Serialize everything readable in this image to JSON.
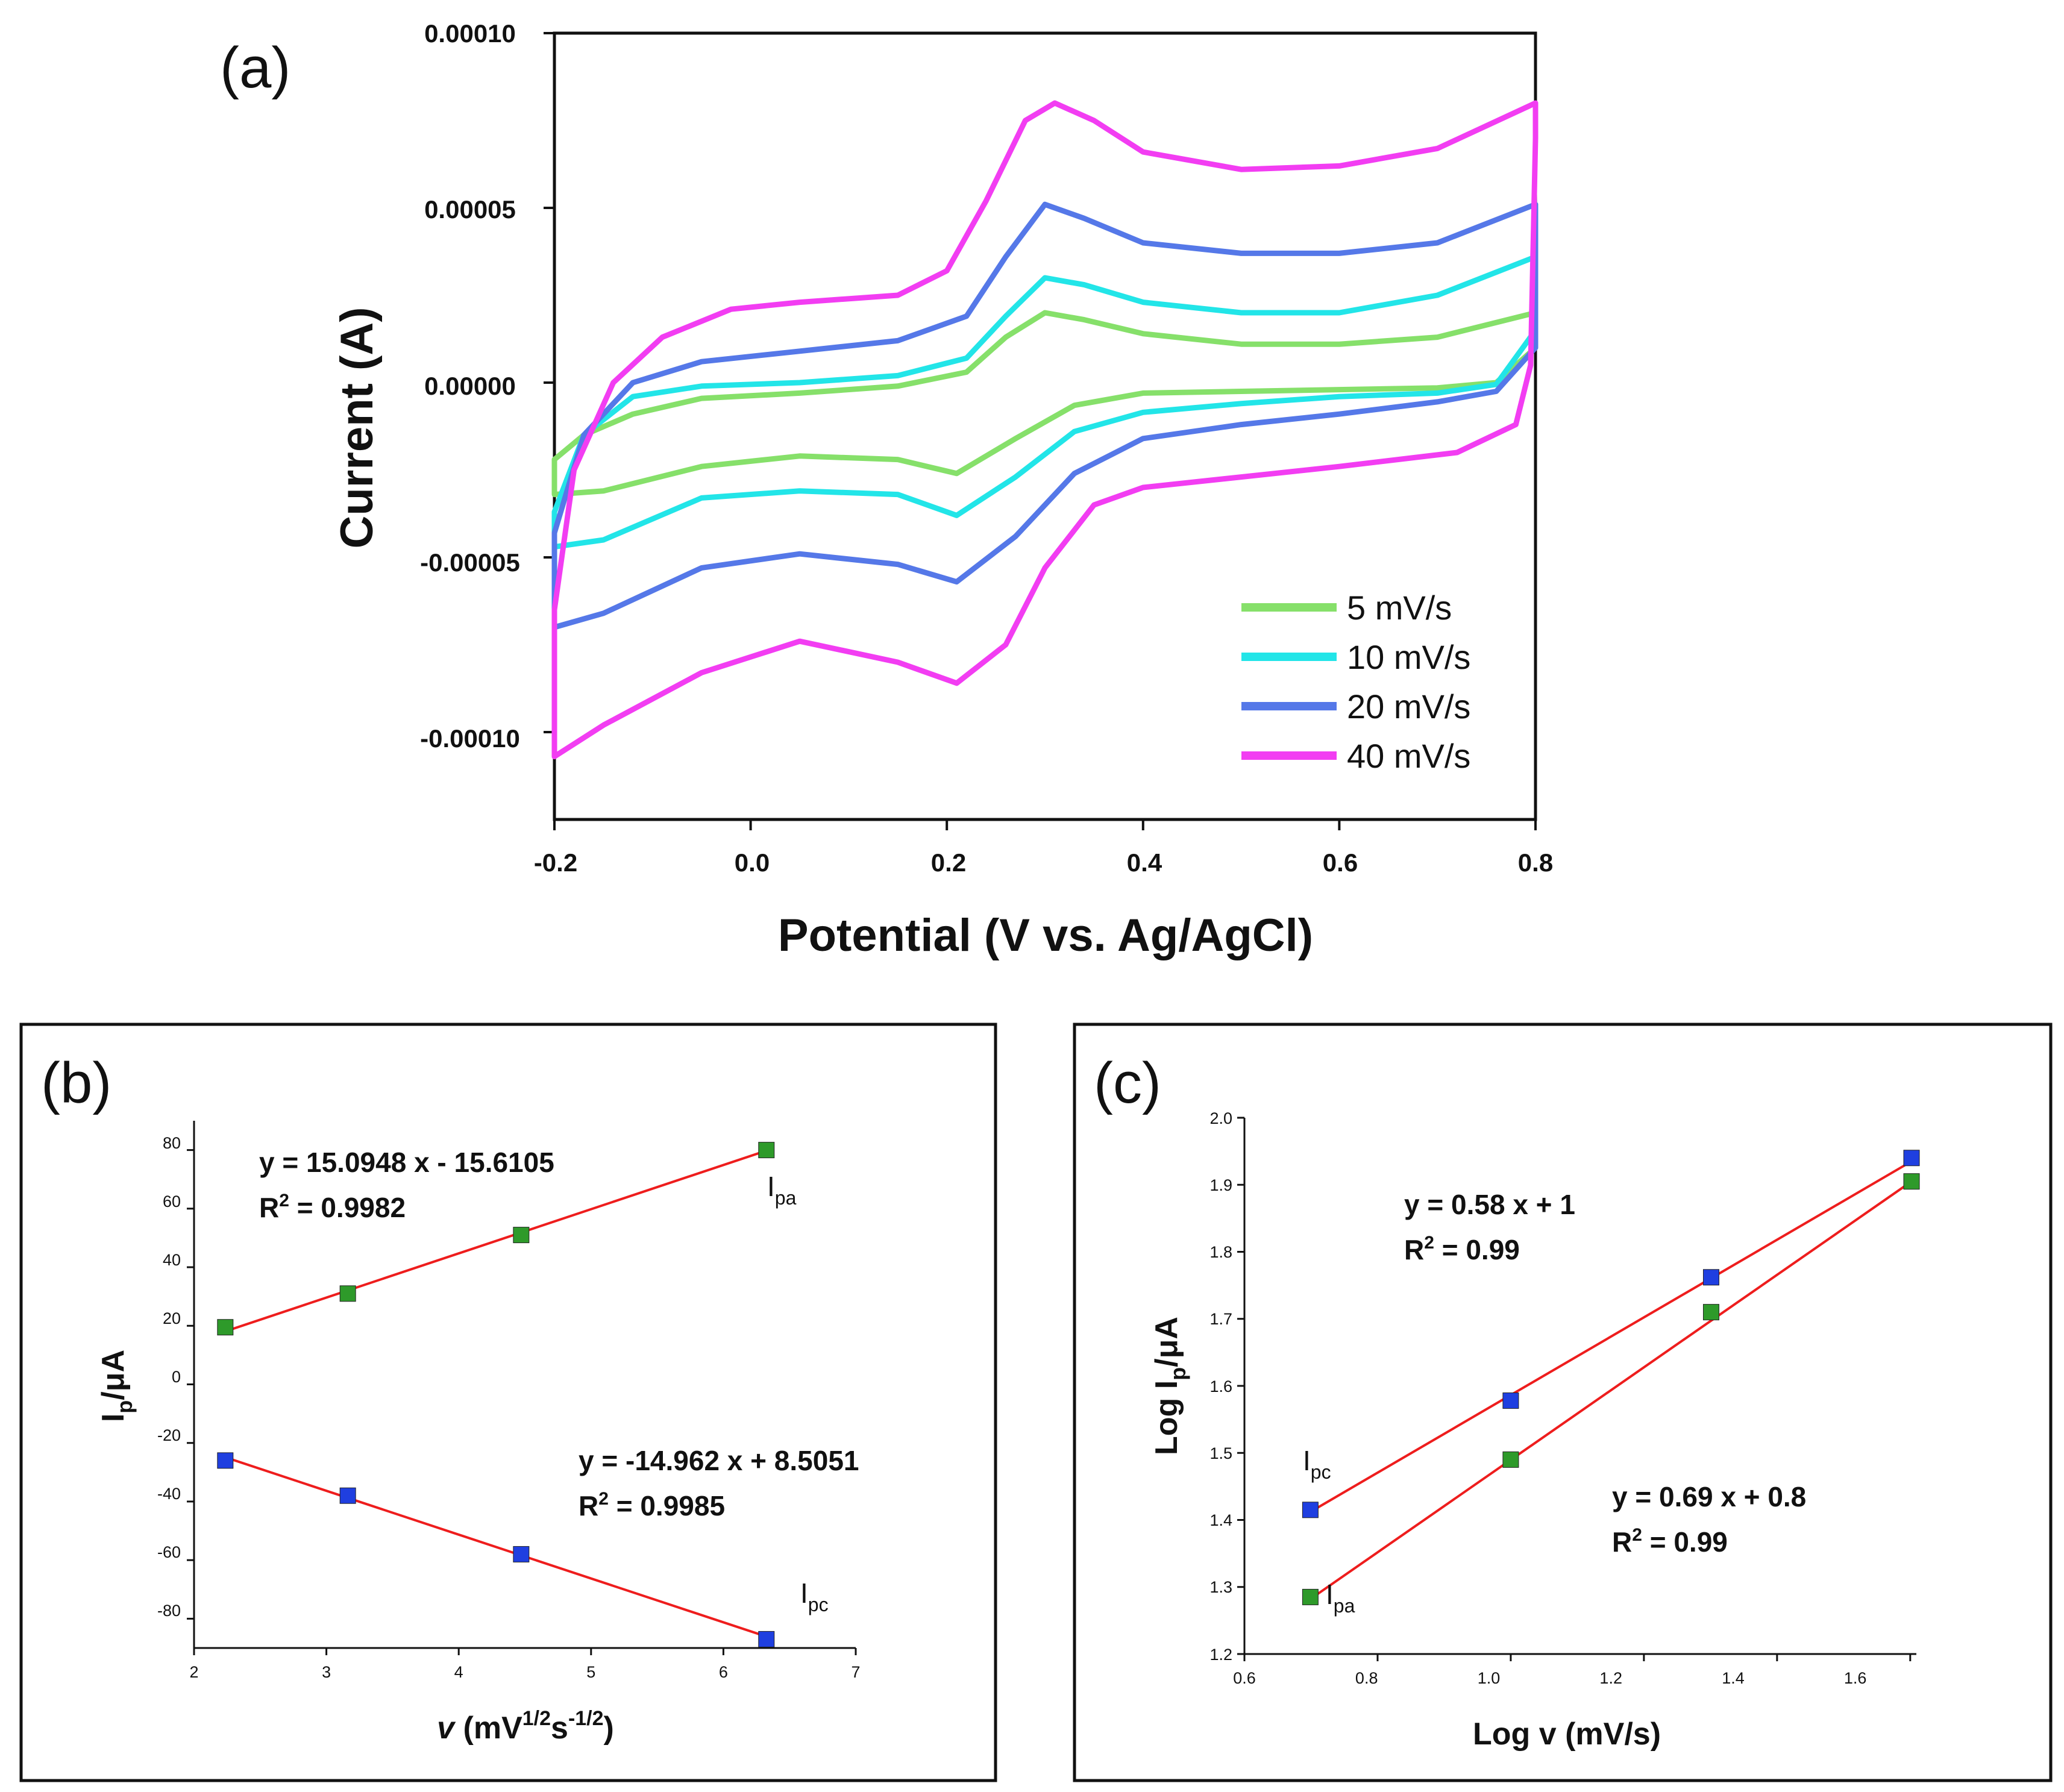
{
  "chart_data": [
    {
      "panel": "(a)",
      "type": "line",
      "xlabel": "Potential (V vs. Ag/AgCl)",
      "ylabel": "Current (A)",
      "xlim": [
        -0.2,
        0.8
      ],
      "ylim": [
        -0.000125,
        0.0001
      ],
      "xticks": [
        -0.2,
        0.0,
        0.2,
        0.4,
        0.6,
        0.8
      ],
      "xtick_labels": [
        "-0.2",
        "0.0",
        "0.2",
        "0.4",
        "0.6",
        "0.8"
      ],
      "yticks": [
        0.0001,
        5e-05,
        0.0,
        -5e-05,
        -0.0001
      ],
      "ytick_labels": [
        "0.00010",
        "0.00005",
        "0.00000",
        "-0.00005",
        "-0.00010"
      ],
      "legend_position": "bottom-right",
      "series": [
        {
          "name": "5 mV/s",
          "color": "#86E06A",
          "anodic": [
            [
              -0.2,
              -2.2e-05
            ],
            [
              -0.17,
              -1.5e-05
            ],
            [
              -0.12,
              -9e-06
            ],
            [
              -0.05,
              -4.5e-06
            ],
            [
              0.05,
              -3e-06
            ],
            [
              0.15,
              -1e-06
            ],
            [
              0.22,
              3e-06
            ],
            [
              0.26,
              1.3e-05
            ],
            [
              0.3,
              2e-05
            ],
            [
              0.34,
              1.8e-05
            ],
            [
              0.4,
              1.4e-05
            ],
            [
              0.5,
              1.1e-05
            ],
            [
              0.6,
              1.1e-05
            ],
            [
              0.7,
              1.3e-05
            ],
            [
              0.8,
              2e-05
            ]
          ],
          "cathodic": [
            [
              0.8,
              1e-05
            ],
            [
              0.76,
              0.0
            ],
            [
              0.7,
              -1.5e-06
            ],
            [
              0.6,
              -2e-06
            ],
            [
              0.5,
              -2.5e-06
            ],
            [
              0.4,
              -3e-06
            ],
            [
              0.33,
              -6.5e-06
            ],
            [
              0.27,
              -1.6e-05
            ],
            [
              0.21,
              -2.6e-05
            ],
            [
              0.15,
              -2.2e-05
            ],
            [
              0.05,
              -2.1e-05
            ],
            [
              -0.05,
              -2.4e-05
            ],
            [
              -0.15,
              -3.1e-05
            ],
            [
              -0.2,
              -3.2e-05
            ]
          ]
        },
        {
          "name": "10 mV/s",
          "color": "#22E5E8",
          "anodic": [
            [
              -0.2,
              -3.7e-05
            ],
            [
              -0.17,
              -1.5e-05
            ],
            [
              -0.12,
              -4e-06
            ],
            [
              -0.05,
              -1e-06
            ],
            [
              0.05,
              0.0
            ],
            [
              0.15,
              2e-06
            ],
            [
              0.22,
              7e-06
            ],
            [
              0.26,
              1.9e-05
            ],
            [
              0.3,
              3e-05
            ],
            [
              0.34,
              2.8e-05
            ],
            [
              0.4,
              2.3e-05
            ],
            [
              0.5,
              2e-05
            ],
            [
              0.6,
              2e-05
            ],
            [
              0.7,
              2.5e-05
            ],
            [
              0.8,
              3.6e-05
            ]
          ],
          "cathodic": [
            [
              0.8,
              1.5e-05
            ],
            [
              0.76,
              -5e-07
            ],
            [
              0.7,
              -3e-06
            ],
            [
              0.6,
              -4e-06
            ],
            [
              0.5,
              -6e-06
            ],
            [
              0.4,
              -8.5e-06
            ],
            [
              0.33,
              -1.4e-05
            ],
            [
              0.27,
              -2.7e-05
            ],
            [
              0.21,
              -3.8e-05
            ],
            [
              0.15,
              -3.2e-05
            ],
            [
              0.05,
              -3.1e-05
            ],
            [
              -0.05,
              -3.3e-05
            ],
            [
              -0.15,
              -4.5e-05
            ],
            [
              -0.2,
              -4.7e-05
            ]
          ]
        },
        {
          "name": "20 mV/s",
          "color": "#5578E8",
          "anodic": [
            [
              -0.2,
              -4.3e-05
            ],
            [
              -0.17,
              -1.5e-05
            ],
            [
              -0.12,
              0.0
            ],
            [
              -0.05,
              6e-06
            ],
            [
              0.05,
              9e-06
            ],
            [
              0.15,
              1.2e-05
            ],
            [
              0.22,
              1.9e-05
            ],
            [
              0.26,
              3.6e-05
            ],
            [
              0.3,
              5.1e-05
            ],
            [
              0.34,
              4.7e-05
            ],
            [
              0.4,
              4e-05
            ],
            [
              0.5,
              3.7e-05
            ],
            [
              0.6,
              3.7e-05
            ],
            [
              0.7,
              4e-05
            ],
            [
              0.8,
              5.1e-05
            ]
          ],
          "cathodic": [
            [
              0.8,
              1e-05
            ],
            [
              0.76,
              -2.5e-06
            ],
            [
              0.7,
              -5.5e-06
            ],
            [
              0.6,
              -9e-06
            ],
            [
              0.5,
              -1.2e-05
            ],
            [
              0.4,
              -1.6e-05
            ],
            [
              0.33,
              -2.6e-05
            ],
            [
              0.27,
              -4.4e-05
            ],
            [
              0.21,
              -5.7e-05
            ],
            [
              0.15,
              -5.2e-05
            ],
            [
              0.05,
              -4.9e-05
            ],
            [
              -0.05,
              -5.3e-05
            ],
            [
              -0.15,
              -6.6e-05
            ],
            [
              -0.2,
              -7e-05
            ]
          ]
        },
        {
          "name": "40 mV/s",
          "color": "#F23DF2",
          "anodic": [
            [
              -0.2,
              -6.5e-05
            ],
            [
              -0.18,
              -2.5e-05
            ],
            [
              -0.14,
              0.0
            ],
            [
              -0.09,
              1.3e-05
            ],
            [
              -0.02,
              2.1e-05
            ],
            [
              0.05,
              2.3e-05
            ],
            [
              0.15,
              2.5e-05
            ],
            [
              0.2,
              3.2e-05
            ],
            [
              0.24,
              5.2e-05
            ],
            [
              0.28,
              7.5e-05
            ],
            [
              0.31,
              8e-05
            ],
            [
              0.35,
              7.5e-05
            ],
            [
              0.4,
              6.6e-05
            ],
            [
              0.5,
              6.1e-05
            ],
            [
              0.6,
              6.2e-05
            ],
            [
              0.7,
              6.7e-05
            ],
            [
              0.8,
              8e-05
            ]
          ],
          "cathodic": [
            [
              0.8,
              7e-05
            ],
            [
              0.795,
              5e-06
            ],
            [
              0.78,
              -1.2e-05
            ],
            [
              0.72,
              -2e-05
            ],
            [
              0.6,
              -2.4e-05
            ],
            [
              0.5,
              -2.7e-05
            ],
            [
              0.4,
              -3e-05
            ],
            [
              0.35,
              -3.5e-05
            ],
            [
              0.3,
              -5.3e-05
            ],
            [
              0.26,
              -7.5e-05
            ],
            [
              0.21,
              -8.6e-05
            ],
            [
              0.15,
              -8e-05
            ],
            [
              0.05,
              -7.4e-05
            ],
            [
              -0.05,
              -8.3e-05
            ],
            [
              -0.15,
              -9.8e-05
            ],
            [
              -0.2,
              -0.000107
            ]
          ]
        }
      ]
    },
    {
      "panel": "(b)",
      "type": "scatter",
      "xlabel_italic": "v",
      "xlabel_unit_a": " (mV",
      "xlabel_sup1": "1/2",
      "xlabel_unit_b": "s",
      "xlabel_sup2": "-1/2",
      "xlabel_close": ")",
      "ylabel_main": "I",
      "ylabel_sub": "p",
      "ylabel_rest": "/μA",
      "xlim": [
        2,
        7
      ],
      "ylim": [
        -90,
        90
      ],
      "xticks": [
        2,
        3,
        4,
        5,
        6,
        7
      ],
      "xtick_labels": [
        "2",
        "3",
        "4",
        "5",
        "6",
        "7"
      ],
      "yticks": [
        80,
        60,
        40,
        20,
        0,
        -20,
        -40,
        -60,
        -80
      ],
      "ytick_labels": [
        "80",
        "60",
        "40",
        "20",
        "0",
        "-20",
        "-40",
        "-60",
        "-80"
      ],
      "series": [
        {
          "name": "Ipa",
          "color": "#2E9A2A",
          "x": [
            2.236,
            3.162,
            4.472,
            6.325
          ],
          "y": [
            19.5,
            31,
            51,
            80
          ],
          "fit_y": [
            18.1,
            32.1,
            51.9,
            79.8
          ]
        },
        {
          "name": "Ipc",
          "color": "#1F3FE0",
          "x": [
            2.236,
            3.162,
            4.472,
            6.325
          ],
          "y": [
            -26,
            -38,
            -58,
            -87
          ],
          "fit_y": [
            -24.9,
            -38.8,
            -58.4,
            -86.1
          ]
        }
      ],
      "equations": [
        {
          "eq": "y = 15.0948 x - 15.6105",
          "r2_pre": "R",
          "r2_sup": "2",
          "r2_post": " = 0.9982"
        },
        {
          "eq": "y = -14.962 x + 8.5051",
          "r2_pre": "R",
          "r2_sup": "2",
          "r2_post": " = 0.9985"
        }
      ],
      "labels": [
        {
          "main": "I",
          "sub": "pa"
        },
        {
          "main": "I",
          "sub": "pc"
        }
      ]
    },
    {
      "panel": "(c)",
      "type": "scatter",
      "xlabel": "Log v (mV/s)",
      "ylabel_main": "Log I",
      "ylabel_sub": "p",
      "ylabel_rest": "/μA",
      "xlim": [
        0.6,
        1.7
      ],
      "ylim": [
        1.2,
        2.0
      ],
      "xticks": [
        0.6,
        0.8,
        1.0,
        1.2,
        1.4,
        1.6
      ],
      "xtick_labels": [
        "0.6",
        "0.8",
        "1.0",
        "1.2",
        "1.4",
        "1.6"
      ],
      "yticks": [
        2.0,
        1.9,
        1.8,
        1.7,
        1.6,
        1.5,
        1.4,
        1.3,
        1.2
      ],
      "ytick_labels": [
        "2.0",
        "1.9",
        "1.8",
        "1.7",
        "1.6",
        "1.5",
        "1.4",
        "1.3",
        "1.2"
      ],
      "series": [
        {
          "name": "Ipc",
          "color": "#1F3FE0",
          "x": [
            0.699,
            1.0,
            1.301,
            1.602
          ],
          "y": [
            1.415,
            1.578,
            1.762,
            1.94
          ],
          "fit_y": [
            1.412,
            1.578,
            1.758,
            1.935
          ]
        },
        {
          "name": "Ipa",
          "color": "#2E9A2A",
          "x": [
            0.699,
            1.0,
            1.301,
            1.602
          ],
          "y": [
            1.285,
            1.49,
            1.71,
            1.905
          ],
          "fit_y": [
            1.282,
            1.489,
            1.697,
            1.905
          ]
        }
      ],
      "equations": [
        {
          "eq": "y = 0.58 x + 1",
          "r2_pre": "R",
          "r2_sup": "2",
          "r2_post": " = 0.99"
        },
        {
          "eq": "y = 0.69 x + 0.8",
          "r2_pre": "R",
          "r2_sup": "2",
          "r2_post": " = 0.99"
        }
      ],
      "labels": [
        {
          "main": "I",
          "sub": "pc"
        },
        {
          "main": "I",
          "sub": "pa"
        }
      ]
    }
  ]
}
